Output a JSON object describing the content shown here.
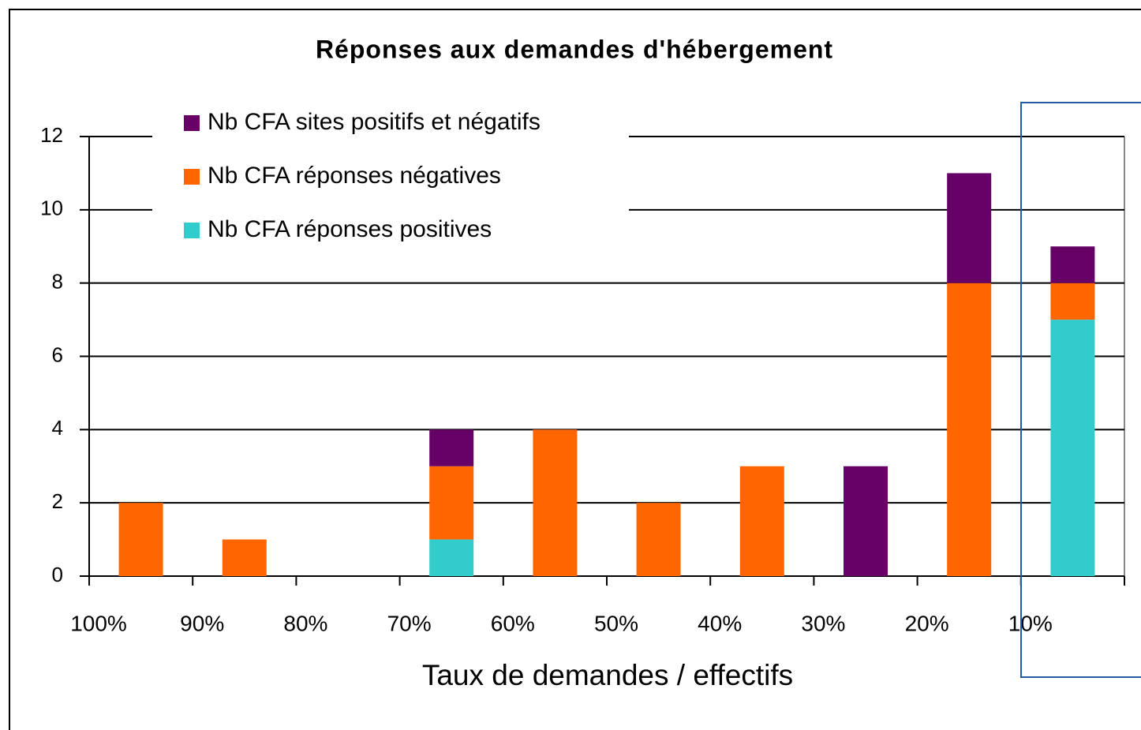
{
  "chart_data": {
    "type": "bar",
    "stacked": true,
    "title": "Réponses aux demandes d'hébergement",
    "x_label": "Taux de demandes / effectifs",
    "categories": [
      "100%",
      "90%",
      "80%",
      "70%",
      "60%",
      "50%",
      "40%",
      "30%",
      "20%",
      "10%"
    ],
    "series": [
      {
        "name": "Nb CFA réponses positives",
        "color": "#33cccc",
        "values": [
          0,
          0,
          0,
          1,
          0,
          0,
          0,
          0,
          0,
          7
        ]
      },
      {
        "name": "Nb CFA réponses négatives",
        "color": "#ff6600",
        "values": [
          2,
          1,
          0,
          2,
          4,
          2,
          3,
          0,
          8,
          1
        ]
      },
      {
        "name": "Nb CFA sites positifs et négatifs",
        "color": "#660066",
        "values": [
          0,
          0,
          0,
          1,
          0,
          0,
          0,
          3,
          3,
          1
        ]
      }
    ],
    "ylim": [
      0,
      12
    ],
    "yticks": [
      0,
      2,
      4,
      6,
      8,
      10,
      12
    ],
    "grid": true
  }
}
